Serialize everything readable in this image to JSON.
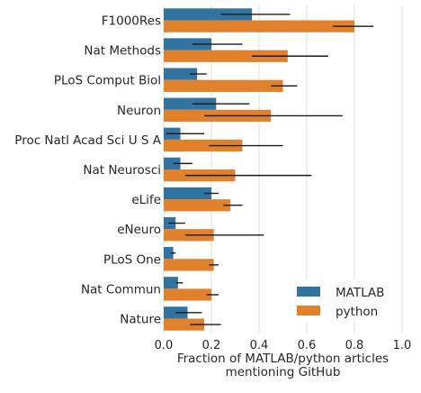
{
  "chart_data": {
    "type": "bar",
    "orientation": "horizontal",
    "title": "",
    "xlabel": "Fraction of MATLAB/python articles\nmentioning GitHub",
    "ylabel": "",
    "xlim": [
      0,
      1.0
    ],
    "xticks": [
      "0.0",
      "0.2",
      "0.4",
      "0.6",
      "0.8",
      "1.0"
    ],
    "grid": true,
    "legend_position": "lower-right",
    "categories": [
      "F1000Res",
      "Nat Methods",
      "PLoS Comput Biol",
      "Neuron",
      "Proc Natl Acad Sci U S A",
      "Nat Neurosci",
      "eLife",
      "eNeuro",
      "PLoS One",
      "Nat Commun",
      "Nature"
    ],
    "series": [
      {
        "name": "MATLAB",
        "color": "#3274a1",
        "values": [
          0.37,
          0.2,
          0.14,
          0.22,
          0.07,
          0.07,
          0.2,
          0.05,
          0.04,
          0.06,
          0.1
        ],
        "err_low": [
          0.24,
          0.12,
          0.11,
          0.12,
          0.01,
          0.04,
          0.17,
          0.02,
          0.03,
          0.05,
          0.05
        ],
        "err_high": [
          0.53,
          0.33,
          0.18,
          0.36,
          0.17,
          0.12,
          0.23,
          0.09,
          0.05,
          0.08,
          0.16
        ]
      },
      {
        "name": "python",
        "color": "#e1812c",
        "values": [
          0.8,
          0.52,
          0.5,
          0.45,
          0.33,
          0.3,
          0.28,
          0.21,
          0.21,
          0.2,
          0.17
        ],
        "err_low": [
          0.71,
          0.37,
          0.45,
          0.17,
          0.19,
          0.09,
          0.25,
          0.09,
          0.19,
          0.18,
          0.11
        ],
        "err_high": [
          0.88,
          0.69,
          0.56,
          0.75,
          0.5,
          0.62,
          0.33,
          0.42,
          0.23,
          0.23,
          0.24
        ]
      }
    ]
  }
}
